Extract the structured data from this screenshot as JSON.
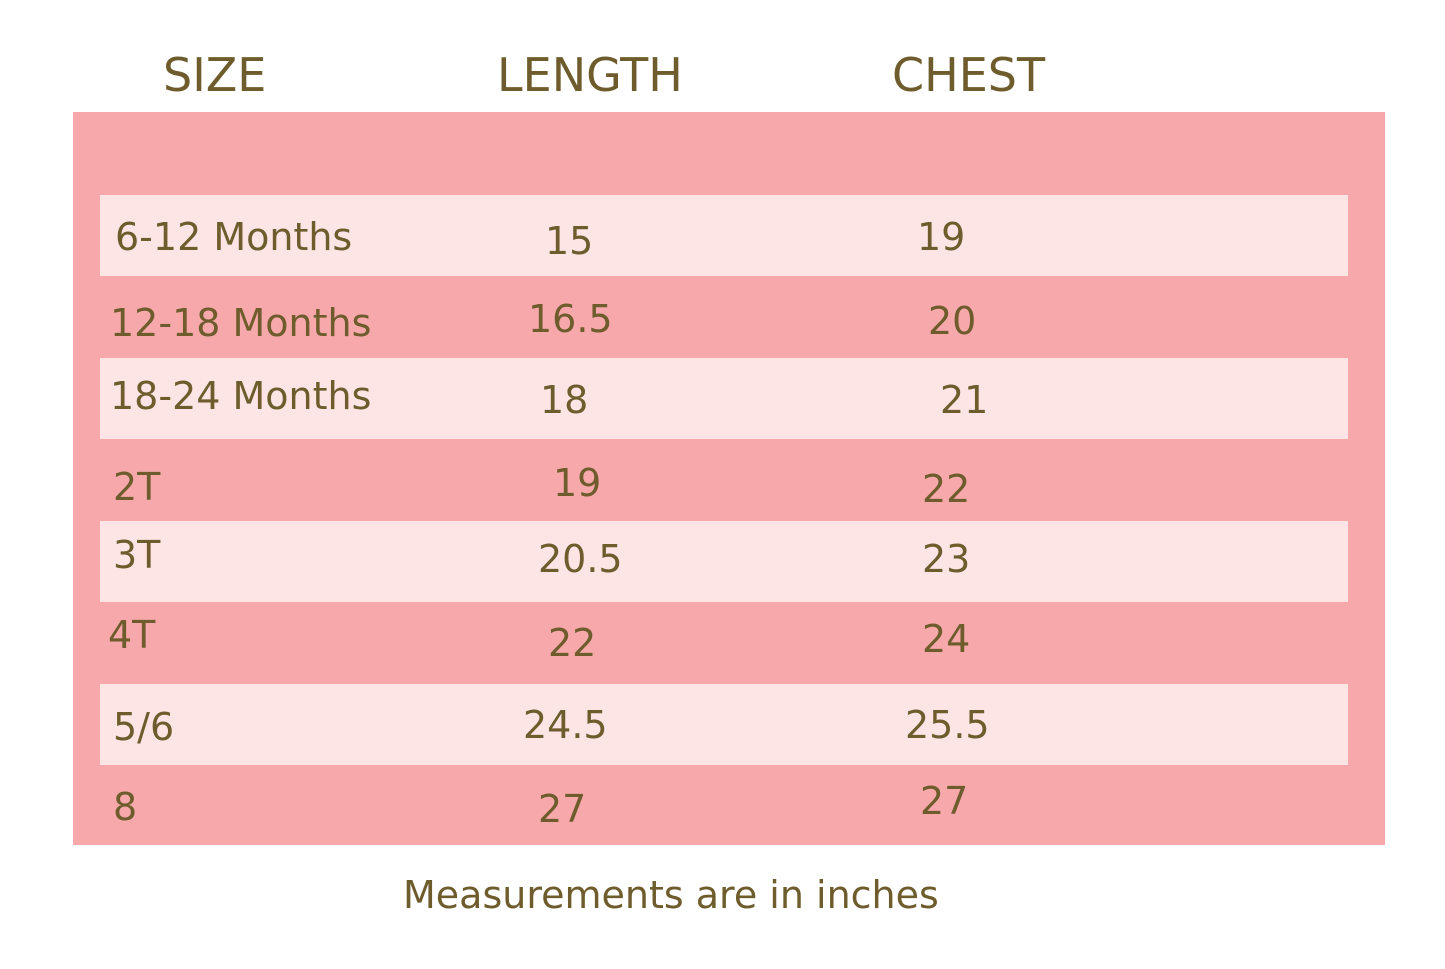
{
  "table": {
    "header": [
      "SIZE",
      "LENGTH",
      "CHEST"
    ],
    "rows": [
      [
        "6-12 Months",
        "15",
        "19"
      ],
      [
        "12-18 Months",
        "16.5",
        "20"
      ],
      [
        "18-24 Months",
        "18",
        "21"
      ],
      [
        "2T",
        "19",
        "22"
      ],
      [
        "3T",
        "20.5",
        "23"
      ],
      [
        "4T",
        "22",
        "24"
      ],
      [
        "5/6",
        "24.5",
        "25.5"
      ],
      [
        "8",
        "27",
        "27"
      ]
    ]
  },
  "note": "Measurements are in inches"
}
